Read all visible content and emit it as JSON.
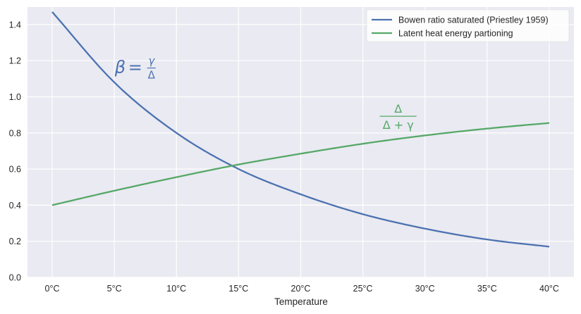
{
  "chart_data": {
    "type": "line",
    "title": "",
    "xlabel": "Temperature",
    "ylabel": "",
    "xlim": [
      -2,
      42
    ],
    "ylim": [
      0,
      1.5
    ],
    "grid": true,
    "legend_position": "top-right",
    "x_ticks": [
      0,
      5,
      10,
      15,
      20,
      25,
      30,
      35,
      40
    ],
    "x_tick_labels": [
      "0°C",
      "5°C",
      "10°C",
      "15°C",
      "20°C",
      "25°C",
      "30°C",
      "35°C",
      "40°C"
    ],
    "y_ticks": [
      0.0,
      0.2,
      0.4,
      0.6,
      0.8,
      1.0,
      1.2,
      1.4
    ],
    "y_tick_labels": [
      "0.0",
      "0.2",
      "0.4",
      "0.6",
      "0.8",
      "1.0",
      "1.2",
      "1.4"
    ],
    "x": [
      0,
      5,
      10,
      15,
      20,
      25,
      30,
      35,
      40
    ],
    "series": [
      {
        "name": "Bowen ratio saturated (Priestley 1959)",
        "color": "#4c72b0",
        "values": [
          1.47,
          1.08,
          0.8,
          0.6,
          0.46,
          0.35,
          0.27,
          0.21,
          0.17
        ]
      },
      {
        "name": "Latent heat energy partioning",
        "color": "#55a868",
        "values": [
          0.4,
          0.48,
          0.555,
          0.625,
          0.685,
          0.74,
          0.786,
          0.824,
          0.855
        ]
      }
    ],
    "annotations": [
      {
        "series": 0,
        "text": "β = γ/Δ",
        "lhs": "β",
        "eq": "=",
        "num": "γ",
        "den": "Δ",
        "x": 8.1,
        "y": 1.14
      },
      {
        "series": 1,
        "num": "Δ",
        "den": "Δ + γ",
        "text": "Δ/(Δ+γ)",
        "x": 27.5,
        "y": 0.9
      }
    ],
    "colors": {
      "background": "#eaeaf2",
      "grid": "#ffffff",
      "text": "#262626"
    }
  }
}
